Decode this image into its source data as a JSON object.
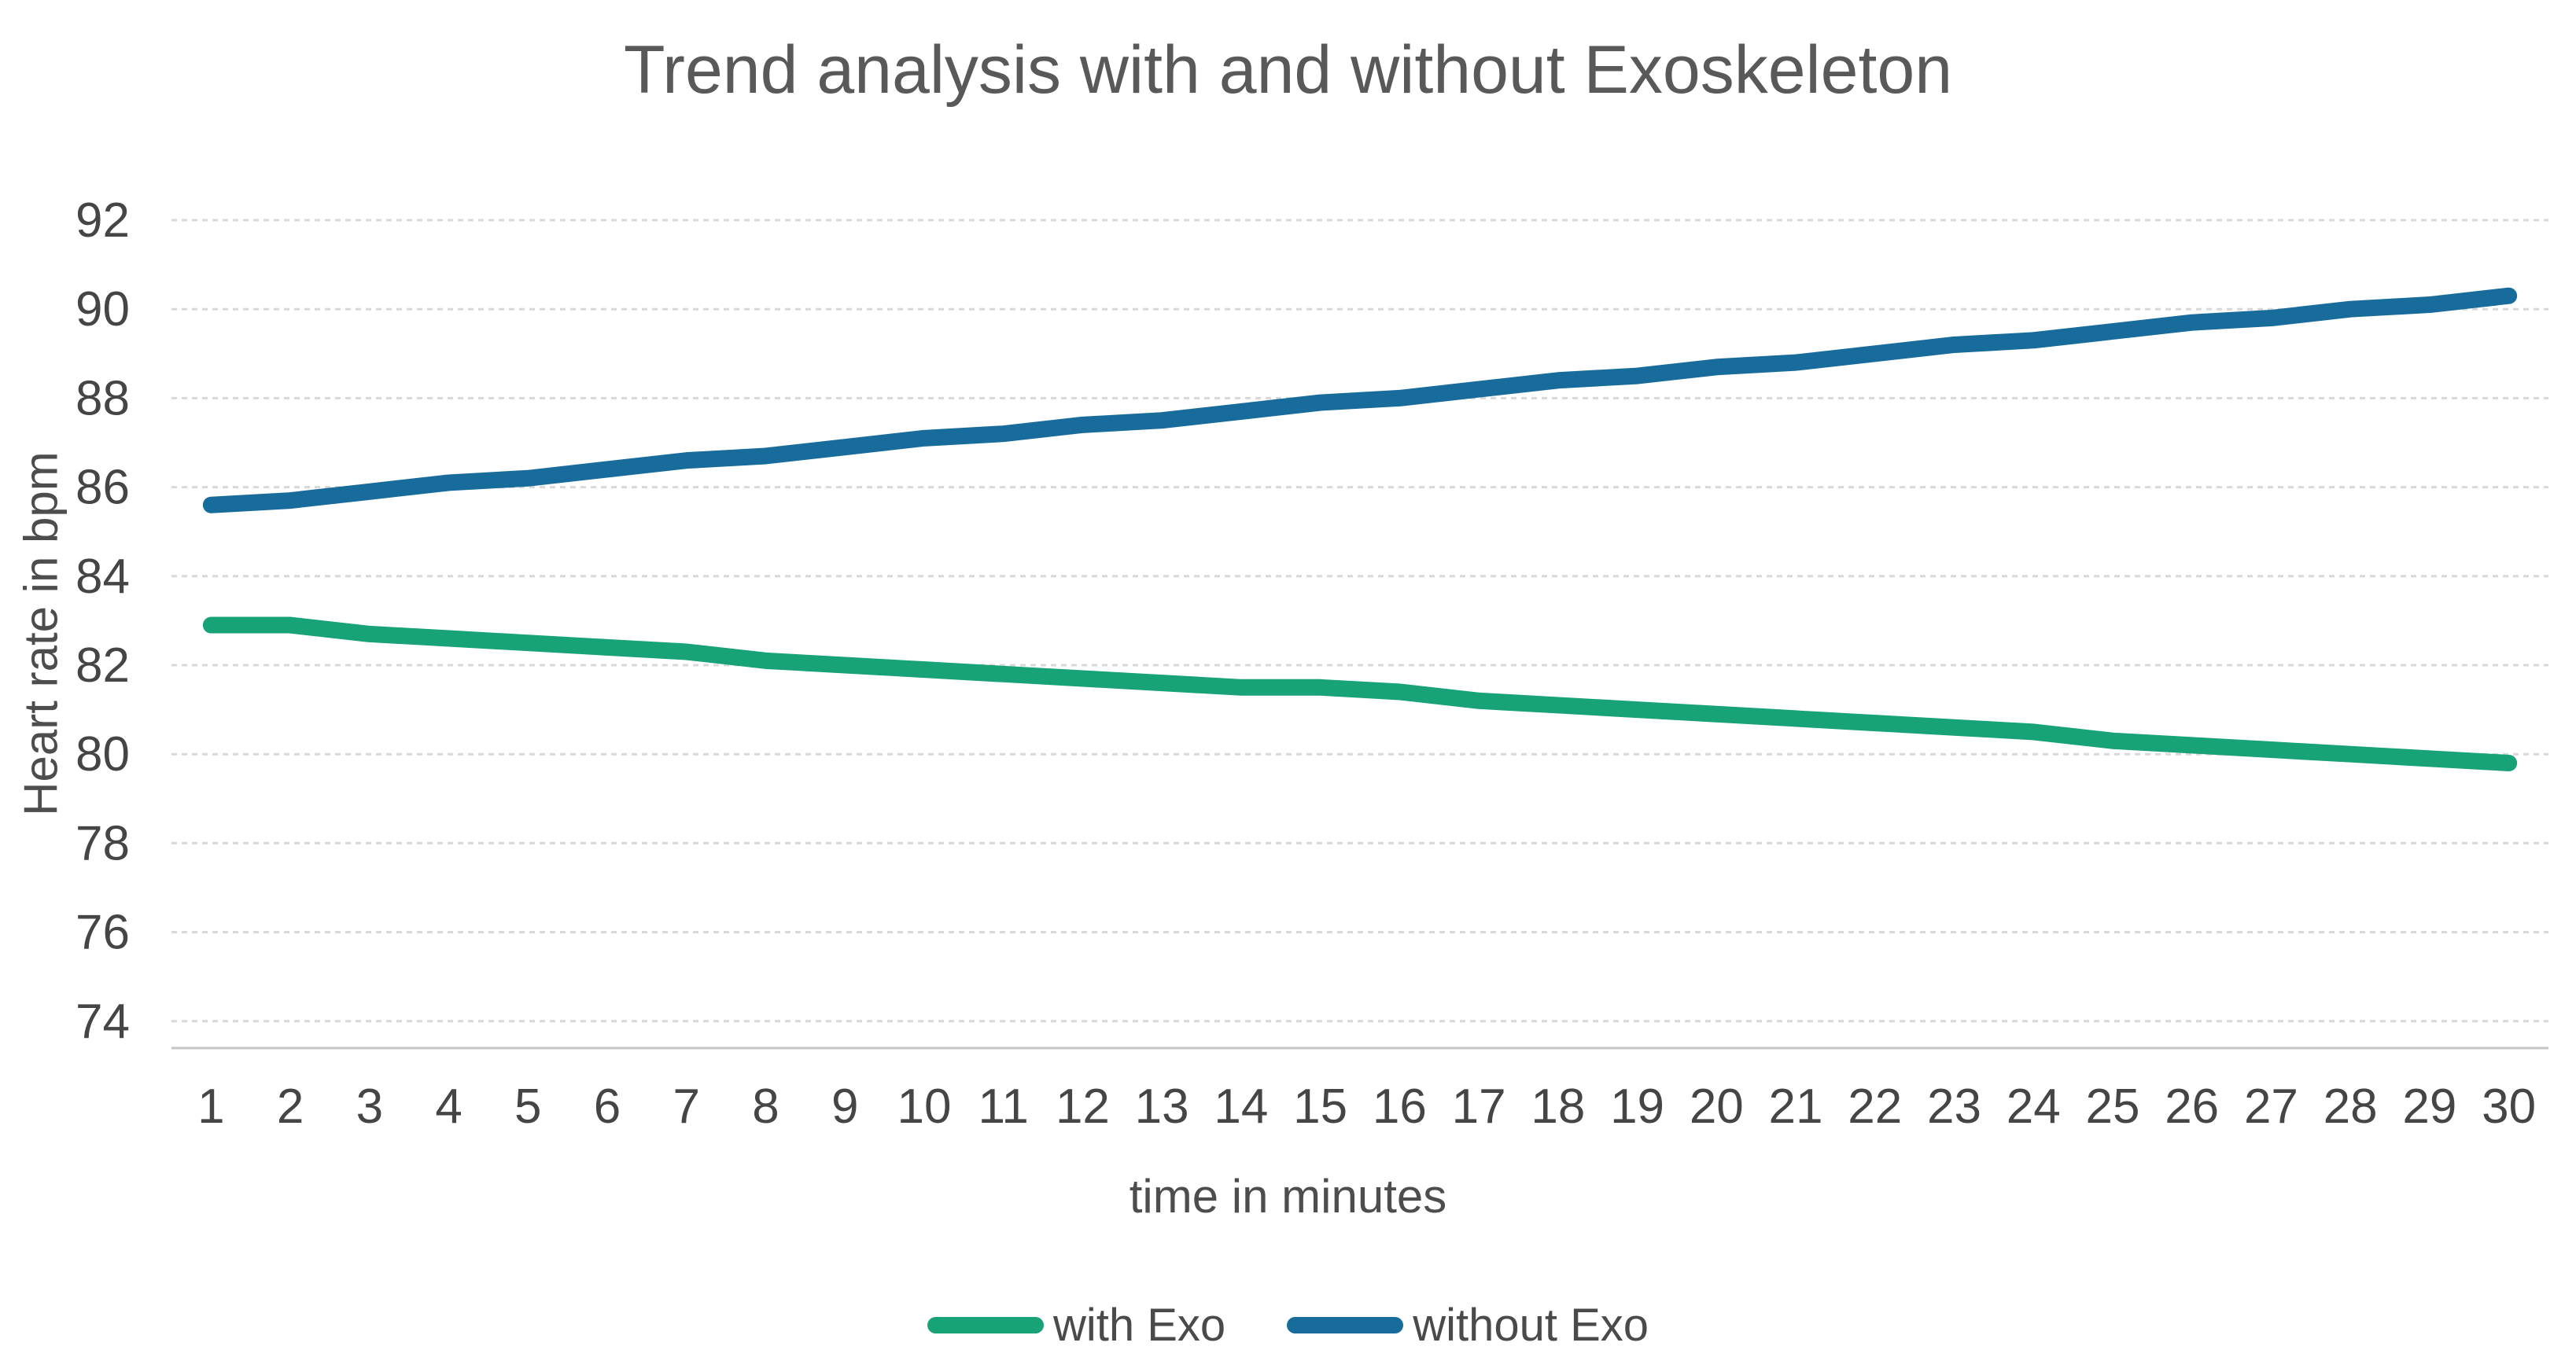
{
  "chart_data": {
    "type": "line",
    "title": "Trend analysis with and without Exoskeleton",
    "xlabel": "time in minutes",
    "ylabel": "Heart rate in bpm",
    "x": [
      1,
      2,
      3,
      4,
      5,
      6,
      7,
      8,
      9,
      10,
      11,
      12,
      13,
      14,
      15,
      16,
      17,
      18,
      19,
      20,
      21,
      22,
      23,
      24,
      25,
      26,
      27,
      28,
      29,
      30
    ],
    "y_ticks": [
      74,
      76,
      78,
      80,
      82,
      84,
      86,
      88,
      90,
      92
    ],
    "ylim": [
      73.4,
      92.5
    ],
    "grid": "horizontal-dashed",
    "legend_position": "bottom-center",
    "series": [
      {
        "name": "with Exo",
        "color": "#17A277",
        "values": [
          82.9,
          82.9,
          82.7,
          82.6,
          82.5,
          82.4,
          82.3,
          82.1,
          82.0,
          81.9,
          81.8,
          81.7,
          81.6,
          81.5,
          81.5,
          81.4,
          81.2,
          81.1,
          81.0,
          80.9,
          80.8,
          80.7,
          80.6,
          80.5,
          80.3,
          80.2,
          80.1,
          80.0,
          79.9,
          79.8
        ]
      },
      {
        "name": "without Exo",
        "color": "#176C9C",
        "values": [
          85.6,
          85.7,
          85.9,
          86.1,
          86.2,
          86.4,
          86.6,
          86.7,
          86.9,
          87.1,
          87.2,
          87.4,
          87.5,
          87.7,
          87.9,
          88.0,
          88.2,
          88.4,
          88.5,
          88.7,
          88.8,
          89.0,
          89.2,
          89.3,
          89.5,
          89.7,
          89.8,
          90.0,
          90.1,
          90.3
        ]
      }
    ],
    "colors": {
      "title_text": "#595959",
      "tick_text": "#454545",
      "axis_title_text": "#4d4d4d",
      "gridline": "#d8d8d8",
      "axis_line": "#c6c6c6",
      "background": "#ffffff"
    }
  }
}
